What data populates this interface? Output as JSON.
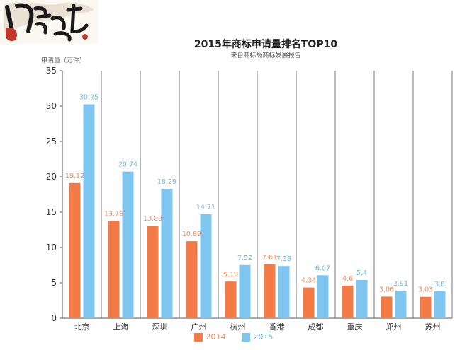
{
  "branding": {
    "logo_text": "商訊江湖",
    "logo_icon": "calligraphy-logo-icon"
  },
  "chart_data": {
    "type": "bar",
    "title": "2015年商标申请量排名TOP10",
    "subtitle": "来自商标局商标发展报告",
    "ylabel": "申请量（万件）",
    "xlabel": "",
    "ylim": [
      0,
      35
    ],
    "yticks": [
      0,
      5,
      10,
      15,
      20,
      25,
      30,
      35
    ],
    "grid": "vertical separators between categories",
    "legend_position": "bottom-center",
    "categories": [
      "北京",
      "上海",
      "深圳",
      "广州",
      "杭州",
      "香港",
      "成都",
      "重庆",
      "郑州",
      "苏州"
    ],
    "series": [
      {
        "name": "2014",
        "color": "#F47B45",
        "label_color": "#F08A5A",
        "values": [
          19.12,
          13.76,
          13.08,
          10.89,
          5.19,
          7.61,
          4.34,
          4.6,
          3.06,
          3.03
        ],
        "labels": [
          "19.12",
          "13.76",
          "13.08",
          "10.89",
          "5.19",
          "7.61",
          "4.34",
          "4.6",
          "3.06",
          "3.03"
        ]
      },
      {
        "name": "2015",
        "color": "#7EC6F0",
        "label_color": "#6FB7E6",
        "values": [
          30.25,
          20.74,
          18.29,
          14.71,
          7.52,
          7.38,
          6.07,
          5.4,
          3.91,
          3.8
        ],
        "labels": [
          "30.25",
          "20.74",
          "18.29",
          "14.71",
          "7.52",
          "7.38",
          "6.07",
          "5.4",
          "3.91",
          "3.8"
        ]
      }
    ]
  }
}
